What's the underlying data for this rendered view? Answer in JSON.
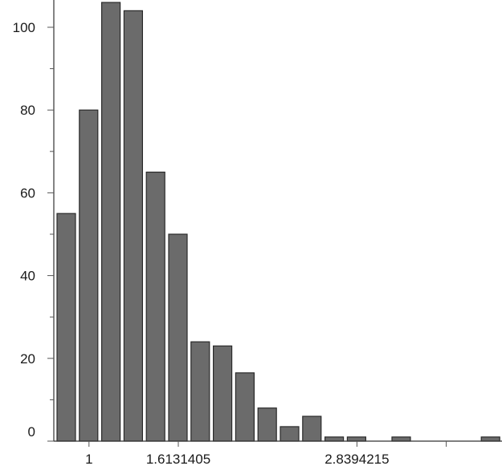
{
  "chart_data": {
    "type": "bar",
    "title": "",
    "xlabel": "",
    "ylabel": "",
    "values": [
      55,
      80,
      106,
      104,
      65,
      50,
      24,
      23,
      16.5,
      8,
      3.5,
      6,
      1,
      1,
      0,
      1,
      0,
      0,
      0,
      1
    ],
    "ylim": [
      0,
      106
    ],
    "y_ticks": [
      {
        "value": 0,
        "label": "0"
      },
      {
        "value": 20,
        "label": "20"
      },
      {
        "value": 40,
        "label": "40"
      },
      {
        "value": 60,
        "label": "60"
      },
      {
        "value": 80,
        "label": "80"
      },
      {
        "value": 100,
        "label": "100"
      }
    ],
    "x_tick_labels": [
      {
        "bin": 1.5,
        "label": "1"
      },
      {
        "bin": 5.5,
        "label": "1.6131405"
      },
      {
        "bin": 13.5,
        "label": "2.8394215"
      }
    ],
    "x_ticks_unlabeled": [
      17.5
    ],
    "bar_color": "#6b6b6b",
    "edge_color": "#2a2a2a",
    "grid": false
  }
}
